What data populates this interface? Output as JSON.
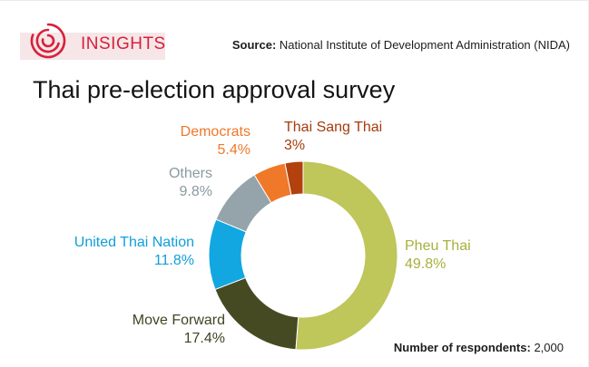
{
  "header": {
    "brand": "INSIGHTS",
    "source_label": "Source:",
    "source_text": "National Institute of Development Administration (NIDA)"
  },
  "title": "Thai pre-election approval survey",
  "footer": {
    "respondents_label": "Number of respondents:",
    "respondents_value": "2,000"
  },
  "colors": {
    "brand": "#d8203a",
    "background": "#ffffff"
  },
  "chart_data": {
    "type": "pie",
    "variant": "donut",
    "start_angle_deg": 0,
    "direction": "clockwise",
    "slices": [
      {
        "label": "Pheu Thai",
        "value": 49.8,
        "value_label": "49.8%",
        "color": "#bfc65a",
        "label_color": "#a8b03c"
      },
      {
        "label": "Move Forward",
        "value": 17.4,
        "value_label": "17.4%",
        "color": "#454a22",
        "label_color": "#3f441f"
      },
      {
        "label": "United Thai Nation",
        "value": 11.8,
        "value_label": "11.8%",
        "color": "#12a7e0",
        "label_color": "#0f9fdb"
      },
      {
        "label": "Others",
        "value": 9.8,
        "value_label": "9.8%",
        "color": "#94a4aa",
        "label_color": "#8a9ba2"
      },
      {
        "label": "Democrats",
        "value": 5.4,
        "value_label": "5.4%",
        "color": "#f07829",
        "label_color": "#f07829"
      },
      {
        "label": "Thai Sang Thai",
        "value": 3,
        "value_label": "3%",
        "color": "#b2410e",
        "label_color": "#a53c0c"
      }
    ]
  }
}
